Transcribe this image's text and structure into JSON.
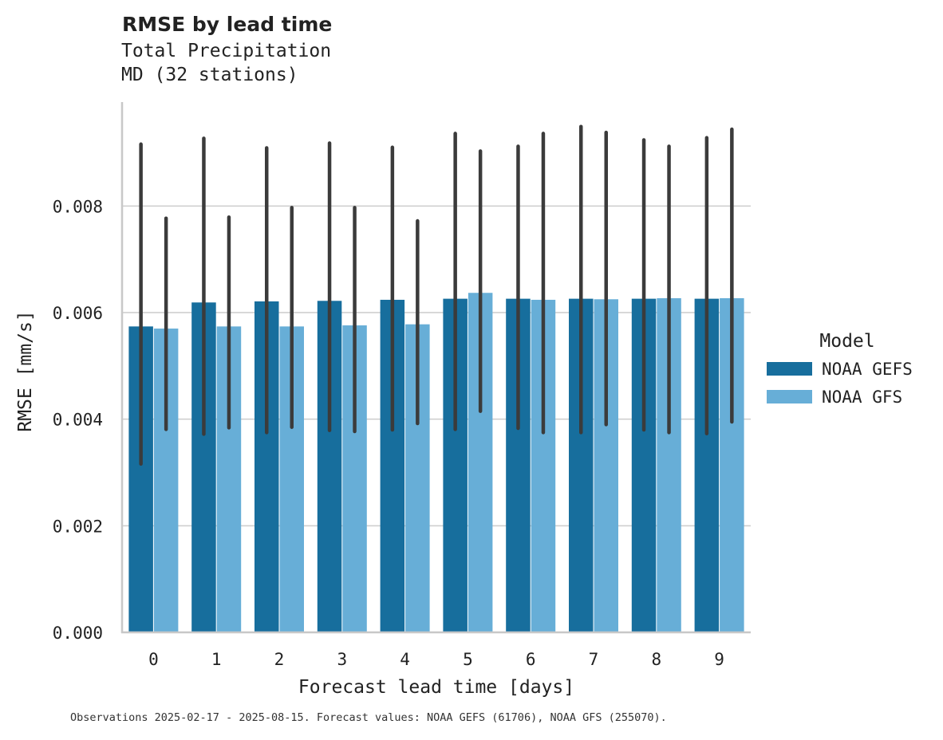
{
  "title": "RMSE by lead time",
  "subtitle_lines": [
    "Total Precipitation",
    "MD (32 stations)"
  ],
  "footnote": "Observations 2025-02-17 - 2025-08-15. Forecast values: NOAA GEFS (61706), NOAA GFS (255070).",
  "colors": {
    "NOAA GEFS": "#176e9d",
    "NOAA GFS": "#67aed7",
    "error_bar": "#3b3b3b",
    "grid": "#cccccc",
    "axis": "#c8c8c8"
  },
  "chart_data": {
    "type": "bar",
    "xlabel": "Forecast lead time [days]",
    "ylabel": "RMSE [mm/s]",
    "categories": [
      "0",
      "1",
      "2",
      "3",
      "4",
      "5",
      "6",
      "7",
      "8",
      "9"
    ],
    "ylim": [
      0,
      0.00995
    ],
    "yticks": [
      "0.000",
      "0.002",
      "0.004",
      "0.006",
      "0.008"
    ],
    "ytick_values": [
      0,
      0.002,
      0.004,
      0.006,
      0.008
    ],
    "grid": "horizontal",
    "legend": {
      "title": "Model",
      "placement": "center-right outside"
    },
    "series": [
      {
        "name": "NOAA GEFS",
        "values": [
          0.00574,
          0.00619,
          0.00621,
          0.00622,
          0.00624,
          0.00626,
          0.00626,
          0.00626,
          0.00626,
          0.00626
        ],
        "err_low": [
          0.00316,
          0.00372,
          0.00375,
          0.00379,
          0.0038,
          0.00381,
          0.00383,
          0.00375,
          0.0038,
          0.00373
        ],
        "err_high": [
          0.00916,
          0.00927,
          0.00909,
          0.00918,
          0.0091,
          0.00936,
          0.00912,
          0.00949,
          0.00924,
          0.00928
        ]
      },
      {
        "name": "NOAA GFS",
        "values": [
          0.0057,
          0.00574,
          0.00574,
          0.00576,
          0.00578,
          0.00637,
          0.00624,
          0.00625,
          0.00627,
          0.00627
        ],
        "err_low": [
          0.00381,
          0.00384,
          0.00385,
          0.00377,
          0.00392,
          0.00415,
          0.00375,
          0.0039,
          0.00375,
          0.00395
        ],
        "err_high": [
          0.00777,
          0.00779,
          0.00797,
          0.00797,
          0.00772,
          0.00903,
          0.00936,
          0.00938,
          0.00912,
          0.00944
        ]
      }
    ]
  }
}
